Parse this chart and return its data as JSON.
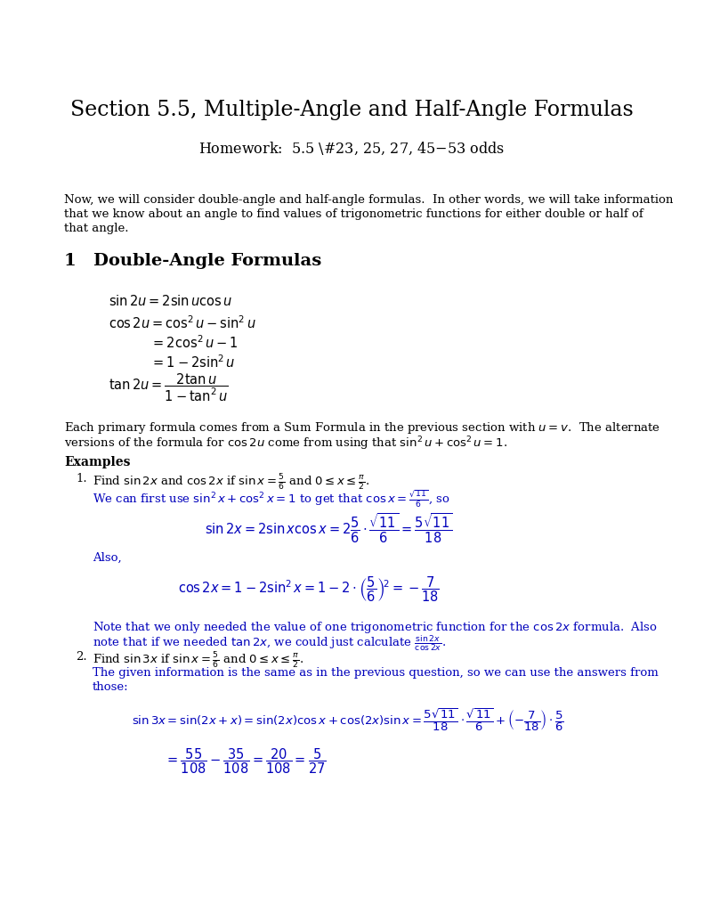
{
  "bg_color": "#ffffff",
  "black": "#000000",
  "blue": "#0000bb",
  "title_fs": 17,
  "hw_fs": 11.5,
  "body_fs": 9.5,
  "section_fs": 14,
  "math_fs": 10.5,
  "small_math_fs": 9.5
}
